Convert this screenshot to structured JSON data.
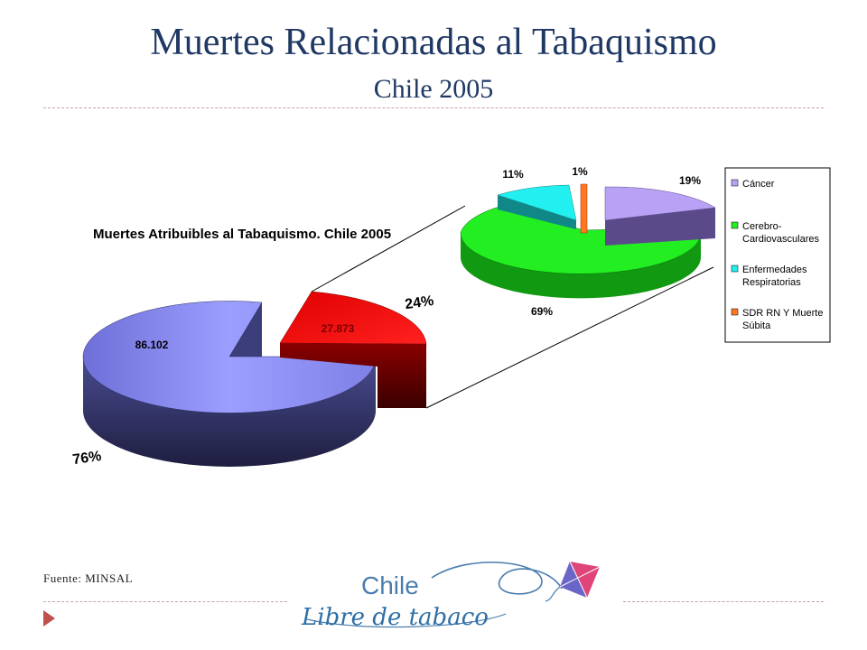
{
  "slide": {
    "title": "Muertes Relacionadas al Tabaquismo",
    "subtitle": "Chile 2005",
    "source": "Fuente: MINSAL"
  },
  "logo": {
    "line1": "Chile",
    "line2": "Libre de tabaco"
  },
  "chart_data": [
    {
      "type": "pie",
      "title": "Muertes Atribuibles al Tabaquismo. Chile 2005",
      "slices": [
        {
          "value": 86102,
          "value_label": "86.102",
          "percent_label": "76%",
          "color": "#8A8CF0"
        },
        {
          "value": 27873,
          "value_label": "27.873",
          "percent_label": "24%",
          "color": "#FF0000"
        }
      ],
      "exploded_slice": 1
    },
    {
      "type": "pie",
      "title": "",
      "slices": [
        {
          "name": "Cáncer",
          "percent": 19,
          "percent_label": "19%",
          "color": "#B9A2F5"
        },
        {
          "name": "Cerebro-Cardiovasculares",
          "legend_lines": [
            "Cerebro-",
            "Cardiovasculares"
          ],
          "percent": 69,
          "percent_label": "69%",
          "color": "#22EE22"
        },
        {
          "name": "Enfermedades Respiratorias",
          "legend_lines": [
            "Enfermedades",
            "Respiratorias"
          ],
          "percent": 11,
          "percent_label": "11%",
          "color": "#22F0F0"
        },
        {
          "name": "SDR RN Y Muerte Súbita",
          "legend_lines": [
            "SDR RN Y Muerte",
            "Súbita"
          ],
          "percent": 1,
          "percent_label": "1%",
          "color": "#FF7722"
        }
      ],
      "legend_position": "right"
    }
  ]
}
